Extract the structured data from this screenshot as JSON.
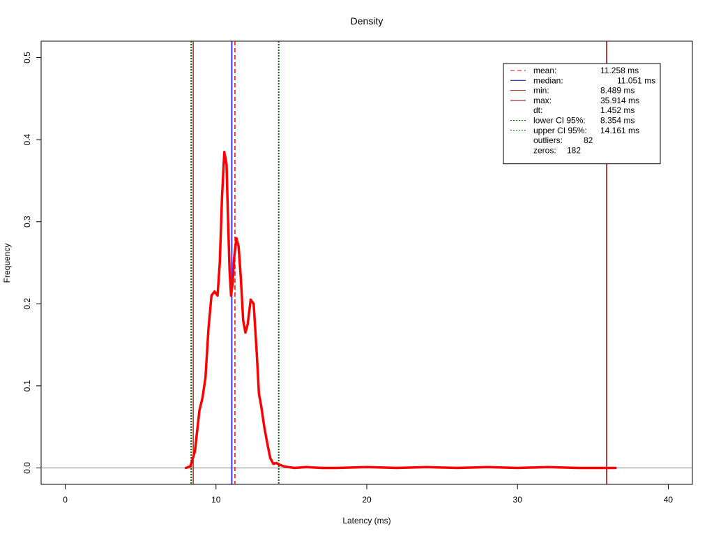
{
  "chart_data": {
    "type": "line",
    "title": "Density",
    "xlabel": "Latency (ms)",
    "ylabel": "Frequency",
    "xlim": [
      -1.6,
      41.6
    ],
    "ylim": [
      -0.02,
      0.52
    ],
    "xticks": [
      0,
      10,
      20,
      30,
      40
    ],
    "yticks": [
      0.0,
      0.1,
      0.2,
      0.3,
      0.4,
      0.5
    ],
    "ytick_labels": [
      "0.0",
      "0.1",
      "0.2",
      "0.3",
      "0.4",
      "0.5"
    ],
    "grid": false,
    "series": [
      {
        "color": "#ff0000",
        "x": [
          8.0,
          8.3,
          8.6,
          8.9,
          9.1,
          9.3,
          9.5,
          9.7,
          9.9,
          10.1,
          10.25,
          10.4,
          10.55,
          10.7,
          10.8,
          10.9,
          11.0,
          11.1,
          11.2,
          11.35,
          11.5,
          11.65,
          11.8,
          11.95,
          12.1,
          12.3,
          12.5,
          12.7,
          12.85,
          13.0,
          13.2,
          13.4,
          13.6,
          13.8,
          14.0,
          14.2,
          14.5,
          14.8,
          15.2,
          16.0,
          17.0,
          18.0,
          20.0,
          22.0,
          24.0,
          26.0,
          28.0,
          30.0,
          32.0,
          34.0,
          36.0,
          36.5
        ],
        "y": [
          0.0,
          0.002,
          0.02,
          0.07,
          0.085,
          0.11,
          0.17,
          0.21,
          0.215,
          0.21,
          0.25,
          0.33,
          0.385,
          0.37,
          0.3,
          0.24,
          0.21,
          0.225,
          0.255,
          0.28,
          0.27,
          0.23,
          0.18,
          0.165,
          0.175,
          0.205,
          0.2,
          0.14,
          0.09,
          0.075,
          0.05,
          0.03,
          0.012,
          0.005,
          0.006,
          0.004,
          0.002,
          0.001,
          0.0,
          0.001,
          0.0,
          0.0,
          0.001,
          0.0,
          0.001,
          0.0,
          0.001,
          0.0,
          0.001,
          0.0,
          0.0,
          0.0
        ]
      }
    ],
    "vlines": [
      {
        "key": "mean",
        "x": 11.258,
        "color": "#ff0000",
        "style": "dashed"
      },
      {
        "key": "median",
        "x": 11.051,
        "color": "#0000ff",
        "style": "solid"
      },
      {
        "key": "min",
        "x": 8.489,
        "color": "#b22222",
        "style": "solid"
      },
      {
        "key": "max",
        "x": 35.914,
        "color": "#8b0000",
        "style": "solid"
      },
      {
        "key": "lower-ci",
        "x": 8.354,
        "color": "#006400",
        "style": "dotted"
      },
      {
        "key": "upper-ci",
        "x": 14.161,
        "color": "#006400",
        "style": "dotted"
      }
    ],
    "hline": {
      "y": 0.0,
      "color": "#808080"
    },
    "legend": {
      "position": "top-right",
      "entries": [
        {
          "label": "mean:",
          "value": "11.258 ms",
          "color": "#ff0000",
          "style": "dashed"
        },
        {
          "label": "median:",
          "value": "11.051 ms",
          "color": "#000080",
          "style": "solid"
        },
        {
          "label": "min:",
          "value": "8.489 ms",
          "color": "#b22222",
          "style": "solid"
        },
        {
          "label": "max:",
          "value": "35.914 ms",
          "color": "#8b0000",
          "style": "solid"
        },
        {
          "label": "dt:",
          "value": "1.452 ms",
          "color": "",
          "style": "none"
        },
        {
          "label": "lower CI 95%:",
          "value": "8.354 ms",
          "color": "#006400",
          "style": "dotted"
        },
        {
          "label": "upper CI 95%:",
          "value": "14.161 ms",
          "color": "#006400",
          "style": "dotted"
        },
        {
          "label": "outliers:",
          "value": "82",
          "color": "",
          "style": "none"
        },
        {
          "label": "zeros:",
          "value": "182",
          "color": "",
          "style": "none"
        }
      ]
    }
  }
}
